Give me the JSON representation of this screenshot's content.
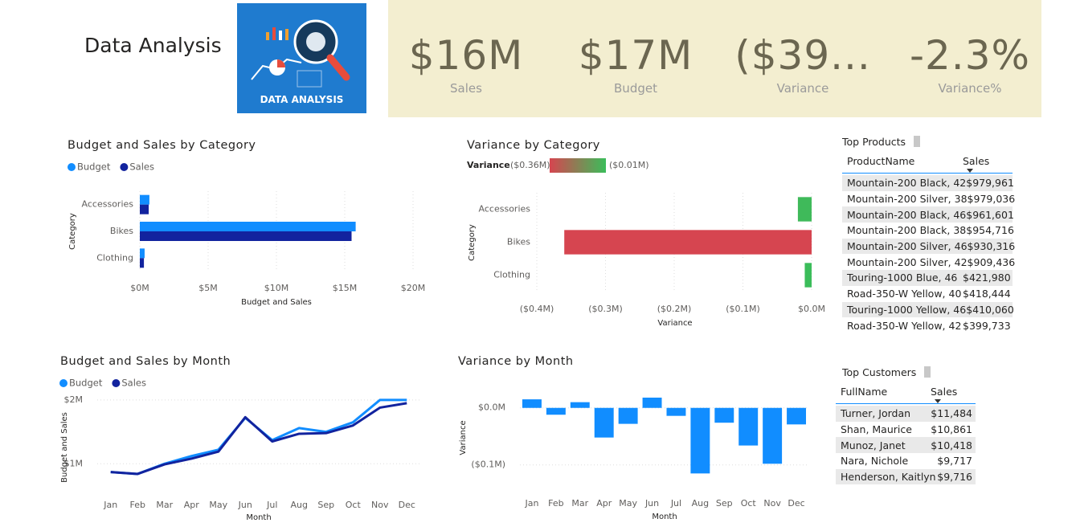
{
  "header": {
    "title": "Data Analysis",
    "logo_text": "DATA ANALYSIS"
  },
  "kpis": [
    {
      "value": "$16M",
      "label": "Sales"
    },
    {
      "value": "$17M",
      "label": "Budget"
    },
    {
      "value": "($39...",
      "label": "Variance"
    },
    {
      "value": "-2.3%",
      "label": "Variance%"
    }
  ],
  "chart_data": [
    {
      "type": "bar",
      "orientation": "horizontal",
      "title": "Budget and Sales by Category",
      "x_label": "Budget and Sales",
      "y_label": "Category",
      "categories": [
        "Accessories",
        "Bikes",
        "Clothing"
      ],
      "series": [
        {
          "name": "Budget",
          "color": "#118dff",
          "values": [
            0.7,
            15.8,
            0.35
          ]
        },
        {
          "name": "Sales",
          "color": "#12239e",
          "values": [
            0.65,
            15.5,
            0.3
          ]
        }
      ],
      "xlim": [
        0,
        20
      ],
      "xticks": [
        {
          "value": 0,
          "label": "$0M"
        },
        {
          "value": 5,
          "label": "$5M"
        },
        {
          "value": 10,
          "label": "$10M"
        },
        {
          "value": 15,
          "label": "$15M"
        },
        {
          "value": 20,
          "label": "$20M"
        }
      ],
      "grid": true
    },
    {
      "type": "bar",
      "orientation": "horizontal",
      "title": "Variance by Category",
      "x_label": "Variance",
      "y_label": "Category",
      "categories": [
        "Accessories",
        "Bikes",
        "Clothing"
      ],
      "values": [
        -0.02,
        -0.36,
        -0.01
      ],
      "color_scale": {
        "title": "Variance",
        "min": {
          "value": -0.36,
          "label": "($0.36M)"
        },
        "max": {
          "value": -0.01,
          "label": "($0.01M)"
        },
        "colors": [
          "#d64550",
          "#3bbd5a"
        ]
      },
      "xlim": [
        -0.4,
        0
      ],
      "xticks": [
        {
          "value": -0.4,
          "label": "($0.4M)"
        },
        {
          "value": -0.3,
          "label": "($0.3M)"
        },
        {
          "value": -0.2,
          "label": "($0.2M)"
        },
        {
          "value": -0.1,
          "label": "($0.1M)"
        },
        {
          "value": 0,
          "label": "$0.0M"
        }
      ],
      "grid": true
    },
    {
      "type": "line",
      "title": "Budget and Sales by Month",
      "x_label": "Month",
      "y_label": "Budget and Sales",
      "categories": [
        "Jan",
        "Feb",
        "Mar",
        "Apr",
        "May",
        "Jun",
        "Jul",
        "Aug",
        "Sep",
        "Oct",
        "Nov",
        "Dec"
      ],
      "series": [
        {
          "name": "Budget",
          "color": "#118dff",
          "values": [
            0.87,
            0.84,
            1.0,
            1.12,
            1.22,
            1.72,
            1.37,
            1.56,
            1.5,
            1.65,
            2.0,
            2.0
          ]
        },
        {
          "name": "Sales",
          "color": "#12239e",
          "values": [
            0.87,
            0.84,
            0.99,
            1.08,
            1.19,
            1.73,
            1.35,
            1.47,
            1.48,
            1.6,
            1.88,
            1.95
          ]
        }
      ],
      "ylim": [
        0.6,
        2.1
      ],
      "yticks": [
        {
          "value": 1,
          "label": "$1M"
        },
        {
          "value": 2,
          "label": "$2M"
        }
      ],
      "grid": true
    },
    {
      "type": "bar",
      "orientation": "vertical",
      "title": "Variance by Month",
      "x_label": "Month",
      "y_label": "Variance",
      "categories": [
        "Jan",
        "Feb",
        "Mar",
        "Apr",
        "May",
        "Jun",
        "Jul",
        "Aug",
        "Sep",
        "Oct",
        "Nov",
        "Dec"
      ],
      "values": [
        0.015,
        -0.012,
        0.01,
        -0.052,
        -0.028,
        0.018,
        -0.014,
        -0.115,
        -0.026,
        -0.066,
        -0.098,
        -0.029
      ],
      "color": "#118dff",
      "ylim": [
        -0.13,
        0.025
      ],
      "yticks": [
        {
          "value": 0,
          "label": "$0.0M"
        },
        {
          "value": -0.1,
          "label": "($0.1M)"
        }
      ],
      "grid": true
    }
  ],
  "tables": [
    {
      "title": "Top Products",
      "columns": [
        "ProductName",
        "Sales"
      ],
      "rows": [
        [
          "Mountain-200 Black, 42",
          "$979,961"
        ],
        [
          "Mountain-200 Silver, 38",
          "$979,036"
        ],
        [
          "Mountain-200 Black, 46",
          "$961,601"
        ],
        [
          "Mountain-200 Black, 38",
          "$954,716"
        ],
        [
          "Mountain-200 Silver, 46",
          "$930,316"
        ],
        [
          "Mountain-200 Silver, 42",
          "$909,436"
        ],
        [
          "Touring-1000 Blue, 46",
          "$421,980"
        ],
        [
          "Road-350-W Yellow, 40",
          "$418,444"
        ],
        [
          "Touring-1000 Yellow, 46",
          "$410,060"
        ],
        [
          "Road-350-W Yellow, 42",
          "$399,733"
        ]
      ]
    },
    {
      "title": "Top Customers",
      "columns": [
        "FullName",
        "Sales"
      ],
      "rows": [
        [
          "Turner, Jordan",
          "$11,484"
        ],
        [
          "Shan, Maurice",
          "$10,861"
        ],
        [
          "Munoz, Janet",
          "$10,418"
        ],
        [
          "Nara, Nichole",
          "$9,717"
        ],
        [
          "Henderson, Kaitlyn",
          "$9,716"
        ]
      ]
    }
  ]
}
